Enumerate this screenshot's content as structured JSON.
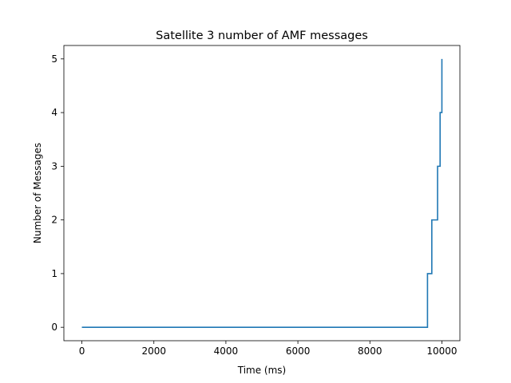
{
  "chart_data": {
    "type": "line",
    "title": "Satellite 3 number of AMF messages",
    "xlabel": "Time (ms)",
    "ylabel": "Number of Messages",
    "xlim": [
      -500,
      10500
    ],
    "ylim": [
      -0.25,
      5.25
    ],
    "xticks": [
      0,
      2000,
      4000,
      6000,
      8000,
      10000
    ],
    "yticks": [
      0,
      1,
      2,
      3,
      4,
      5
    ],
    "grid": false,
    "line_color": "#1f77b4",
    "step": "post",
    "series": [
      {
        "x": [
          0,
          9600,
          9720,
          9880,
          9950,
          10000
        ],
        "y": [
          0,
          1,
          2,
          3,
          4,
          5
        ]
      }
    ]
  }
}
